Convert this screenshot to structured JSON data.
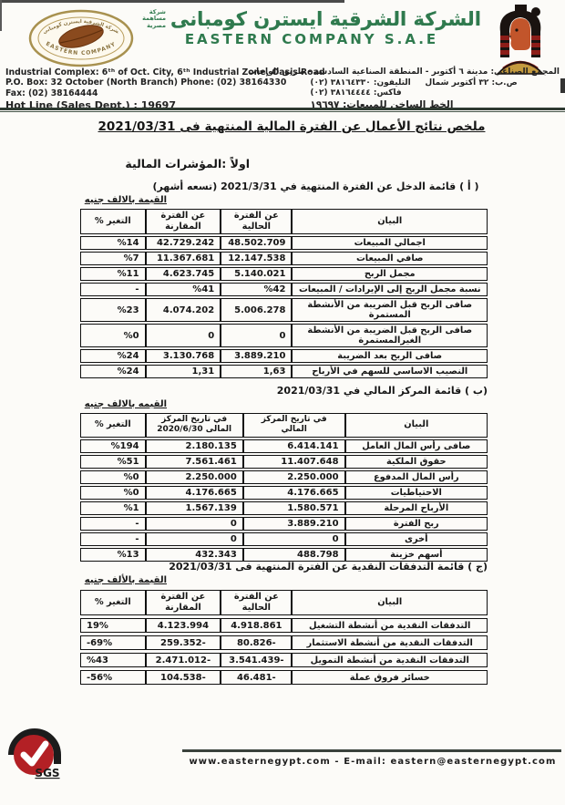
{
  "header": {
    "company_ar": "الشركة الشرقية ايسترن كومبانى",
    "company_type": [
      "شركة",
      "مساهمة",
      "مصرية"
    ],
    "company_en": "EASTERN COMPANY S.A.E",
    "address_en": [
      "Industrial Complex: 6ᵗʰ of Oct. City, 6ᵗʰ Industrial Zone, Oasis Road",
      "P.O. Box: 32 October (North Branch) Phone: (02) 38164330",
      "Fax: (02) 38164444",
      "Hot Line (Sales Dept.) : 19697"
    ],
    "address_ar": [
      "المجمع الصناعي: مدينة ٦ أكتوبر - المنطقة الصناعية السادسة - طريق الواحات",
      "ص.ب: ٣٢ أكتوبر شمال     التليفون: ٣٨١٦٤٣٣٠ (٠٢)",
      "فاكس: ٣٨١٦٤٤٤٤ (٠٢)",
      "الخط الساخن للمبيعات: ١٩٦٩٧"
    ]
  },
  "title": "ملخص نتائج الأعمال عن الفترة المالية المنتهية فى 2021/03/31",
  "section_heading": "اولاً :المؤشرات المالية",
  "tables": {
    "income": {
      "caption": "( أ ) قائمة الدخل عن الفترة المنتهية في 2021/3/31 (تسعه أشهر)",
      "unit_note": "القيمة بالالف جنيه",
      "columns": [
        {
          "key": "item",
          "label": "البيان"
        },
        {
          "key": "current",
          "label": "عن الفترة الحالية"
        },
        {
          "key": "comparative",
          "label": "عن الفترة المقارنة"
        },
        {
          "key": "change",
          "label": "التغير %"
        }
      ],
      "rows": [
        {
          "item": "اجمالي المبيعات",
          "current": "48.502.709",
          "comparative": "42.729.242",
          "change": "%14"
        },
        {
          "item": "صافي المبيعات",
          "current": "12.147.538",
          "comparative": "11.367.681",
          "change": "%7"
        },
        {
          "item": "مجمل الربح",
          "current": "5.140.021",
          "comparative": "4.623.745",
          "change": "%11"
        },
        {
          "item": "نسبة مجمل الربح إلى الإيرادات / المبيعات",
          "current": "%42",
          "comparative": "%41",
          "change": "-"
        },
        {
          "item": "صافى الربح قبل الضريبة من الأنشطة المستمرة",
          "current": "5.006.278",
          "comparative": "4.074.202",
          "change": "%23"
        },
        {
          "item": "صافى الربح قبل الضريبة من الأنشطة الغيرالمستمرة",
          "current": "0",
          "comparative": "0",
          "change": "%0"
        },
        {
          "item": "صافى الربح بعد الضريبة",
          "current": "3.889.210",
          "comparative": "3.130.768",
          "change": "%24"
        },
        {
          "item": "النصيب الاساسي للسهم في الأرباح",
          "current": "1,63",
          "comparative": "1,31",
          "change": "%24"
        }
      ]
    },
    "position": {
      "caption": "(ب ) قائمة المركز المالي في 2021/03/31",
      "unit_note": "القيمه بالالف جنيه",
      "columns": [
        {
          "key": "item",
          "label": "البيان"
        },
        {
          "key": "current",
          "label": "في تاريخ المركز المالي"
        },
        {
          "key": "comparative",
          "label": "في تاريخ المركز المالى 2020/6/30"
        },
        {
          "key": "change",
          "label": "التغير %"
        }
      ],
      "rows": [
        {
          "item": "صافى رأس المال العامل",
          "current": "6.414.141",
          "comparative": "2.180.135",
          "change": "%194"
        },
        {
          "item": "حقوق الملكية",
          "current": "11.407.648",
          "comparative": "7.561.461",
          "change": "%51"
        },
        {
          "item": "رأس المال المدفوع",
          "current": "2.250.000",
          "comparative": "2.250.000",
          "change": "%0"
        },
        {
          "item": "الاحتياطيات",
          "current": "4.176.665",
          "comparative": "4.176.665",
          "change": "%0"
        },
        {
          "item": "الأرباح المرحلة",
          "current": "1.580.571",
          "comparative": "1.567.139",
          "change": "%1"
        },
        {
          "item": "ربح الفترة",
          "current": "3.889.210",
          "comparative": "0",
          "change": "-"
        },
        {
          "item": "أخرى",
          "current": "0",
          "comparative": "0",
          "change": "-"
        },
        {
          "item": "أسهم خزينة",
          "current": "488.798",
          "comparative": "432.343",
          "change": "%13"
        }
      ]
    },
    "cashflow": {
      "caption": "(ج ) قائمة التدفقات النقدية عن الفترة المنتهية فى 2021/03/31",
      "unit_note": "القيمة بالألف جنيه",
      "columns": [
        {
          "key": "item",
          "label": "البيان"
        },
        {
          "key": "current",
          "label": "عن الفترة الحالية"
        },
        {
          "key": "comparative",
          "label": "عن الفترة المقارنة"
        },
        {
          "key": "change",
          "label": "التغير %"
        }
      ],
      "rows": [
        {
          "item": "التدفقات النقدية من أنشطة التشغيل",
          "current": "4.918.861",
          "comparative": "4.123.994",
          "change": "19%"
        },
        {
          "item": "التدفقات النقدية من أنشطة الاستثمار",
          "current": "80.826-",
          "comparative": "259.352-",
          "change": "-69%"
        },
        {
          "item": "التدفقات النقدية من أنشطة التمويل",
          "current": "3.541.439-",
          "comparative": "2.471.012-",
          "change": "%43"
        },
        {
          "item": "خسائر فروق عملة",
          "current": "46.481-",
          "comparative": "104.538-",
          "change": "-56%"
        }
      ]
    }
  },
  "footer": {
    "sgs_label": "SGS",
    "text": "www.easternegypt.com   -   E-mail: eastern@easternegypt.com"
  },
  "colors": {
    "brand_green": "#2f7a4e",
    "sgs_red": "#b32025",
    "divider_dark": "#2e3a31"
  }
}
